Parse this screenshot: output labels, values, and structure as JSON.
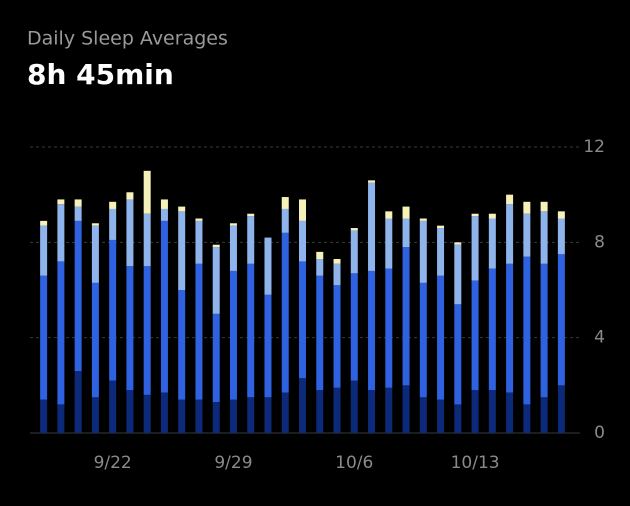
{
  "header": {
    "title": "Daily Sleep Averages",
    "value": "8h 45min"
  },
  "chart_data": {
    "type": "bar",
    "stacked": true,
    "categories": [
      null,
      null,
      null,
      null,
      "9/22",
      null,
      null,
      null,
      null,
      null,
      null,
      "9/29",
      null,
      null,
      null,
      null,
      null,
      null,
      "10/6",
      null,
      null,
      null,
      null,
      null,
      null,
      "10/13",
      null,
      null,
      null,
      null,
      null
    ],
    "series": [
      {
        "color": "#0d2a7a",
        "values": [
          1.4,
          1.2,
          2.6,
          1.5,
          2.2,
          1.8,
          1.6,
          1.7,
          1.4,
          1.4,
          1.3,
          1.4,
          1.5,
          1.5,
          1.7,
          2.3,
          1.8,
          1.9,
          2.2,
          1.8,
          1.9,
          2.0,
          1.5,
          1.4,
          1.2,
          1.8,
          1.8,
          1.7,
          1.2,
          1.5,
          2.0
        ]
      },
      {
        "color": "#2f62e0",
        "values": [
          5.2,
          6.0,
          6.3,
          4.8,
          5.9,
          5.2,
          5.4,
          7.2,
          4.6,
          5.7,
          3.7,
          5.4,
          5.6,
          4.3,
          6.7,
          4.9,
          4.8,
          4.3,
          4.5,
          5.0,
          5.0,
          5.8,
          4.8,
          5.2,
          4.2,
          4.6,
          5.1,
          5.4,
          6.2,
          5.6,
          5.5
        ]
      },
      {
        "color": "#8fb4ec",
        "values": [
          2.1,
          2.4,
          0.6,
          2.4,
          1.3,
          2.8,
          2.2,
          0.5,
          3.3,
          1.8,
          2.8,
          1.9,
          2.0,
          2.4,
          1.0,
          1.7,
          0.7,
          0.9,
          1.8,
          3.7,
          2.1,
          1.2,
          2.6,
          2.0,
          2.5,
          2.7,
          2.1,
          2.5,
          1.8,
          2.2,
          1.5
        ]
      },
      {
        "color": "#f6f1b8",
        "values": [
          0.2,
          0.2,
          0.3,
          0.1,
          0.3,
          0.3,
          1.8,
          0.4,
          0.2,
          0.1,
          0.1,
          0.1,
          0.1,
          0,
          0.5,
          0.9,
          0.3,
          0.2,
          0.1,
          0.1,
          0.3,
          0.5,
          0.1,
          0.1,
          0.1,
          0.1,
          0.2,
          0.4,
          0.5,
          0.4,
          0.3
        ]
      }
    ],
    "ylim": [
      0,
      12
    ],
    "yticks": [
      0,
      4,
      8,
      12
    ],
    "grid": true
  }
}
